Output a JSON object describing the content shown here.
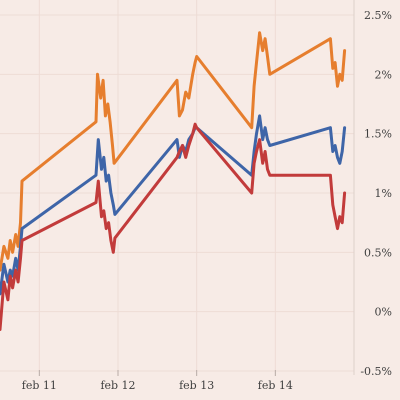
{
  "chart_data": {
    "type": "line",
    "title": "",
    "xlabel": "",
    "ylabel": "",
    "xlim": [
      10.5,
      15.0
    ],
    "ylim": [
      -0.5,
      2.5
    ],
    "x_ticks": [
      {
        "x": 11,
        "label": "feb 11"
      },
      {
        "x": 12,
        "label": "feb 12"
      },
      {
        "x": 13,
        "label": "feb 13"
      },
      {
        "x": 14,
        "label": "feb 14"
      }
    ],
    "y_ticks": [
      {
        "y": 2.5,
        "label": "2.5%"
      },
      {
        "y": 2.0,
        "label": "2%"
      },
      {
        "y": 1.5,
        "label": "1.5%"
      },
      {
        "y": 1.0,
        "label": "1%"
      },
      {
        "y": 0.5,
        "label": "0.5%"
      },
      {
        "y": 0.0,
        "label": "0%"
      },
      {
        "y": -0.5,
        "label": "-0.5%"
      }
    ],
    "grid": true,
    "series": [
      {
        "color": "#e67e2e",
        "points": [
          [
            10.5,
            0.35
          ],
          [
            10.55,
            0.55
          ],
          [
            10.6,
            0.45
          ],
          [
            10.63,
            0.6
          ],
          [
            10.66,
            0.5
          ],
          [
            10.7,
            0.65
          ],
          [
            10.73,
            0.55
          ],
          [
            10.76,
            0.75
          ],
          [
            10.78,
            1.1
          ],
          [
            11.72,
            1.6
          ],
          [
            11.74,
            2.0
          ],
          [
            11.78,
            1.8
          ],
          [
            11.81,
            1.95
          ],
          [
            11.84,
            1.65
          ],
          [
            11.87,
            1.75
          ],
          [
            11.9,
            1.6
          ],
          [
            11.93,
            1.4
          ],
          [
            11.95,
            1.25
          ],
          [
            12.75,
            1.95
          ],
          [
            12.78,
            1.65
          ],
          [
            12.82,
            1.7
          ],
          [
            12.86,
            1.85
          ],
          [
            12.9,
            1.8
          ],
          [
            12.95,
            2.0
          ],
          [
            12.98,
            2.1
          ],
          [
            13.0,
            2.15
          ],
          [
            13.7,
            1.55
          ],
          [
            13.73,
            1.9
          ],
          [
            13.76,
            2.1
          ],
          [
            13.8,
            2.35
          ],
          [
            13.84,
            2.2
          ],
          [
            13.87,
            2.3
          ],
          [
            13.9,
            2.15
          ],
          [
            13.93,
            2.0
          ],
          [
            14.7,
            2.3
          ],
          [
            14.73,
            2.05
          ],
          [
            14.76,
            2.1
          ],
          [
            14.79,
            1.9
          ],
          [
            14.82,
            2.0
          ],
          [
            14.85,
            1.95
          ],
          [
            14.88,
            2.2
          ]
        ]
      },
      {
        "color": "#3e65a8",
        "points": [
          [
            10.5,
            0.15
          ],
          [
            10.55,
            0.4
          ],
          [
            10.6,
            0.25
          ],
          [
            10.63,
            0.35
          ],
          [
            10.66,
            0.3
          ],
          [
            10.7,
            0.45
          ],
          [
            10.73,
            0.35
          ],
          [
            10.76,
            0.55
          ],
          [
            10.78,
            0.7
          ],
          [
            11.72,
            1.15
          ],
          [
            11.75,
            1.45
          ],
          [
            11.79,
            1.2
          ],
          [
            11.82,
            1.3
          ],
          [
            11.85,
            1.1
          ],
          [
            11.88,
            1.15
          ],
          [
            11.91,
            1.0
          ],
          [
            11.94,
            0.9
          ],
          [
            11.96,
            0.82
          ],
          [
            12.75,
            1.45
          ],
          [
            12.78,
            1.3
          ],
          [
            12.82,
            1.4
          ],
          [
            12.86,
            1.35
          ],
          [
            12.9,
            1.45
          ],
          [
            12.95,
            1.5
          ],
          [
            12.98,
            1.55
          ],
          [
            13.0,
            1.55
          ],
          [
            13.7,
            1.15
          ],
          [
            13.73,
            1.35
          ],
          [
            13.76,
            1.5
          ],
          [
            13.8,
            1.65
          ],
          [
            13.84,
            1.45
          ],
          [
            13.87,
            1.55
          ],
          [
            13.9,
            1.45
          ],
          [
            13.93,
            1.4
          ],
          [
            14.7,
            1.55
          ],
          [
            14.73,
            1.35
          ],
          [
            14.76,
            1.4
          ],
          [
            14.79,
            1.3
          ],
          [
            14.82,
            1.25
          ],
          [
            14.85,
            1.35
          ],
          [
            14.88,
            1.55
          ]
        ]
      },
      {
        "color": "#c23b3b",
        "points": [
          [
            10.5,
            -0.15
          ],
          [
            10.55,
            0.25
          ],
          [
            10.6,
            0.1
          ],
          [
            10.63,
            0.3
          ],
          [
            10.66,
            0.2
          ],
          [
            10.7,
            0.35
          ],
          [
            10.73,
            0.25
          ],
          [
            10.76,
            0.45
          ],
          [
            10.78,
            0.6
          ],
          [
            11.72,
            0.92
          ],
          [
            11.75,
            1.1
          ],
          [
            11.79,
            0.8
          ],
          [
            11.82,
            0.85
          ],
          [
            11.85,
            0.7
          ],
          [
            11.88,
            0.75
          ],
          [
            11.91,
            0.6
          ],
          [
            11.94,
            0.5
          ],
          [
            11.96,
            0.62
          ],
          [
            12.75,
            1.3
          ],
          [
            12.78,
            1.35
          ],
          [
            12.82,
            1.4
          ],
          [
            12.86,
            1.3
          ],
          [
            12.9,
            1.4
          ],
          [
            12.95,
            1.5
          ],
          [
            12.98,
            1.58
          ],
          [
            13.0,
            1.55
          ],
          [
            13.7,
            1.0
          ],
          [
            13.73,
            1.25
          ],
          [
            13.76,
            1.35
          ],
          [
            13.8,
            1.45
          ],
          [
            13.84,
            1.25
          ],
          [
            13.87,
            1.35
          ],
          [
            13.9,
            1.2
          ],
          [
            13.93,
            1.15
          ],
          [
            14.7,
            1.15
          ],
          [
            14.73,
            0.9
          ],
          [
            14.76,
            0.8
          ],
          [
            14.79,
            0.7
          ],
          [
            14.82,
            0.8
          ],
          [
            14.85,
            0.75
          ],
          [
            14.88,
            1.0
          ]
        ]
      }
    ]
  }
}
